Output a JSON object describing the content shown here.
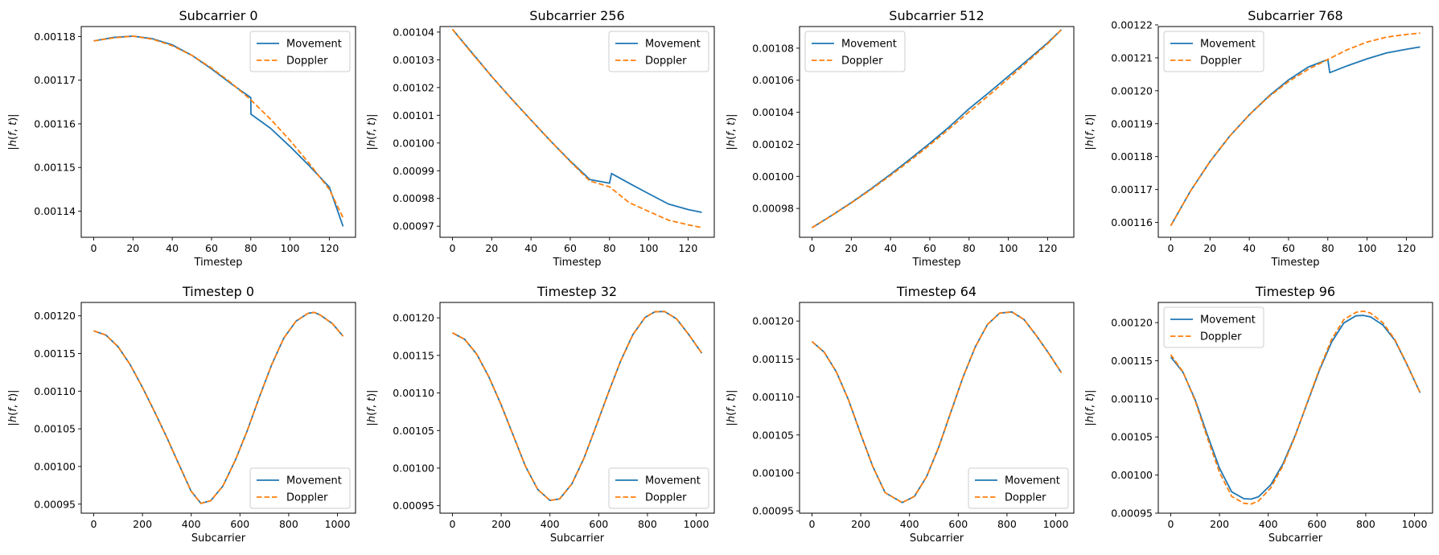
{
  "colors": {
    "movement": "#1f77b4",
    "doppler": "#ff7f0e"
  },
  "chart_data": [
    {
      "type": "line",
      "title": "Subcarrier 0",
      "xlabel": "Timestep",
      "ylabel": "|h(f, t)|",
      "xlim": [
        -6.35,
        133.35
      ],
      "ylim": [
        0.001134,
        0.0011823
      ],
      "xticks": [
        0,
        20,
        40,
        60,
        80,
        100,
        120
      ],
      "yticks": [
        0.00114,
        0.00115,
        0.00116,
        0.00117,
        0.00118
      ],
      "ytick_labels": [
        "0.00114",
        "0.00115",
        "0.00116",
        "0.00117",
        "0.00118"
      ],
      "legend": "upper right",
      "series": [
        {
          "name": "Movement",
          "style": "solid",
          "x": [
            0,
            10,
            20,
            30,
            40,
            50,
            60,
            70,
            80,
            80.1,
            90,
            100,
            110,
            120,
            127
          ],
          "y": [
            0.001179,
            0.0011798,
            0.0011801,
            0.0011795,
            0.0011781,
            0.0011757,
            0.0011726,
            0.0011692,
            0.001166,
            0.0011622,
            0.001159,
            0.0011548,
            0.0011503,
            0.0011455,
            0.0011365
          ]
        },
        {
          "name": "Doppler",
          "style": "dashed",
          "x": [
            0,
            10,
            20,
            30,
            40,
            50,
            60,
            70,
            80,
            90,
            100,
            110,
            120,
            127
          ],
          "y": [
            0.001179,
            0.0011797,
            0.0011801,
            0.0011794,
            0.0011779,
            0.0011757,
            0.0011728,
            0.0011694,
            0.0011655,
            0.0011611,
            0.0011562,
            0.0011508,
            0.001145,
            0.0011385
          ]
        }
      ]
    },
    {
      "type": "line",
      "title": "Subcarrier 256",
      "xlabel": "Timestep",
      "ylabel": "|h(f, t)|",
      "xlim": [
        -6.35,
        133.35
      ],
      "ylim": [
        0.000966,
        0.001042
      ],
      "xticks": [
        0,
        20,
        40,
        60,
        80,
        100,
        120
      ],
      "yticks": [
        0.00097,
        0.00098,
        0.00099,
        0.001,
        0.00101,
        0.00102,
        0.00103,
        0.00104
      ],
      "ytick_labels": [
        "0.00097",
        "0.00098",
        "0.00099",
        "0.00100",
        "0.00101",
        "0.00102",
        "0.00103",
        "0.00104"
      ],
      "legend": "upper right",
      "series": [
        {
          "name": "Movement",
          "style": "solid",
          "x": [
            0,
            10,
            20,
            30,
            40,
            50,
            60,
            70,
            80,
            81,
            90,
            100,
            110,
            120,
            127
          ],
          "y": [
            0.001041,
            0.0010325,
            0.001024,
            0.001016,
            0.0010083,
            0.0010007,
            0.0009935,
            0.0009868,
            0.0009855,
            0.000989,
            0.0009855,
            0.0009817,
            0.000978,
            0.000976,
            0.000975
          ]
        },
        {
          "name": "Doppler",
          "style": "dashed",
          "x": [
            0,
            10,
            20,
            30,
            40,
            50,
            60,
            70,
            80,
            90,
            100,
            110,
            120,
            127
          ],
          "y": [
            0.001041,
            0.0010323,
            0.001024,
            0.001016,
            0.0010083,
            0.0010007,
            0.0009933,
            0.0009863,
            0.0009842,
            0.0009785,
            0.0009753,
            0.0009722,
            0.0009705,
            0.0009695
          ]
        }
      ]
    },
    {
      "type": "line",
      "title": "Subcarrier 512",
      "xlabel": "Timestep",
      "ylabel": "|h(f, t)|",
      "xlim": [
        -6.35,
        133.35
      ],
      "ylim": [
        0.000962,
        0.0010935
      ],
      "xticks": [
        0,
        20,
        40,
        60,
        80,
        100,
        120
      ],
      "yticks": [
        0.00098,
        0.001,
        0.00102,
        0.00104,
        0.00106,
        0.00108
      ],
      "ytick_labels": [
        "0.00098",
        "0.00100",
        "0.00102",
        "0.00104",
        "0.00106",
        "0.00108"
      ],
      "legend": "upper left",
      "series": [
        {
          "name": "Movement",
          "style": "solid",
          "x": [
            0,
            10,
            20,
            30,
            40,
            50,
            60,
            70,
            80,
            90,
            100,
            110,
            120,
            127
          ],
          "y": [
            0.000968,
            0.0009756,
            0.0009836,
            0.0009922,
            0.0010013,
            0.0010108,
            0.0010207,
            0.001031,
            0.0010422,
            0.0010522,
            0.0010625,
            0.0010728,
            0.0010833,
            0.0010915
          ]
        },
        {
          "name": "Doppler",
          "style": "dashed",
          "x": [
            0,
            10,
            20,
            30,
            40,
            50,
            60,
            70,
            80,
            90,
            100,
            110,
            120,
            127
          ],
          "y": [
            0.000968,
            0.0009755,
            0.0009834,
            0.0009918,
            0.0010006,
            0.0010099,
            0.0010196,
            0.0010298,
            0.0010403,
            0.0010505,
            0.001061,
            0.0010718,
            0.0010828,
            0.0010915
          ]
        }
      ]
    },
    {
      "type": "line",
      "title": "Subcarrier 768",
      "xlabel": "Timestep",
      "ylabel": "|h(f, t)|",
      "xlim": [
        -6.35,
        133.35
      ],
      "ylim": [
        0.0011555,
        0.0012195
      ],
      "xticks": [
        0,
        20,
        40,
        60,
        80,
        100,
        120
      ],
      "yticks": [
        0.00116,
        0.00117,
        0.00118,
        0.00119,
        0.0012,
        0.00121,
        0.00122
      ],
      "ytick_labels": [
        "0.00116",
        "0.00117",
        "0.00118",
        "0.00119",
        "0.00120",
        "0.00121",
        "0.00122"
      ],
      "legend": "upper left",
      "series": [
        {
          "name": "Movement",
          "style": "solid",
          "x": [
            0,
            10,
            20,
            30,
            40,
            50,
            60,
            70,
            80,
            81,
            90,
            100,
            110,
            120,
            127
          ],
          "y": [
            0.001159,
            0.0011695,
            0.0011785,
            0.0011862,
            0.0011927,
            0.0011984,
            0.0012033,
            0.0012072,
            0.0012095,
            0.0012055,
            0.0012076,
            0.0012097,
            0.0012115,
            0.0012126,
            0.0012133
          ]
        },
        {
          "name": "Doppler",
          "style": "dashed",
          "x": [
            0,
            10,
            20,
            30,
            40,
            50,
            60,
            70,
            80,
            90,
            100,
            110,
            120,
            127
          ],
          "y": [
            0.001159,
            0.0011695,
            0.0011785,
            0.0011862,
            0.0011927,
            0.0011982,
            0.0012028,
            0.0012065,
            0.0012095,
            0.0012125,
            0.0012148,
            0.0012163,
            0.0012171,
            0.0012175
          ]
        }
      ]
    },
    {
      "type": "line",
      "title": "Timestep 0",
      "xlabel": "Subcarrier",
      "ylabel": "|h(f, t)|",
      "xlim": [
        -51.15,
        1074.15
      ],
      "ylim": [
        0.000938,
        0.0012178
      ],
      "xticks": [
        0,
        200,
        400,
        600,
        800,
        1000
      ],
      "yticks": [
        0.00095,
        0.001,
        0.00105,
        0.0011,
        0.00115,
        0.0012
      ],
      "ytick_labels": [
        "0.00095",
        "0.00100",
        "0.00105",
        "0.00110",
        "0.00115",
        "0.00120"
      ],
      "legend": "lower right",
      "series": [
        {
          "name": "Movement",
          "style": "solid",
          "x": [
            0,
            50,
            100,
            150,
            200,
            250,
            300,
            350,
            400,
            440,
            480,
            530,
            580,
            630,
            680,
            730,
            780,
            830,
            880,
            905,
            930,
            980,
            1023
          ],
          "y": [
            0.00118,
            0.0011745,
            0.001159,
            0.001135,
            0.001105,
            0.0010725,
            0.0010385,
            0.0010025,
            0.000967,
            0.000951,
            0.0009545,
            0.000974,
            0.0010075,
            0.0010475,
            0.0010925,
            0.001135,
            0.0011705,
            0.001193,
            0.0012035,
            0.0012045,
            0.001201,
            0.0011895,
            0.001173
          ]
        },
        {
          "name": "Doppler",
          "style": "dashed",
          "x": [
            0,
            50,
            100,
            150,
            200,
            250,
            300,
            350,
            400,
            440,
            480,
            530,
            580,
            630,
            680,
            730,
            780,
            830,
            880,
            905,
            930,
            980,
            1023
          ],
          "y": [
            0.00118,
            0.0011745,
            0.001159,
            0.001135,
            0.001105,
            0.0010725,
            0.0010385,
            0.0010025,
            0.000967,
            0.000951,
            0.0009545,
            0.000974,
            0.0010075,
            0.0010475,
            0.0010925,
            0.001135,
            0.0011705,
            0.001193,
            0.0012035,
            0.0012045,
            0.001201,
            0.0011895,
            0.001173
          ]
        }
      ]
    },
    {
      "type": "line",
      "title": "Timestep 32",
      "xlabel": "Subcarrier",
      "ylabel": "|h(f, t)|",
      "xlim": [
        -51.15,
        1074.15
      ],
      "ylim": [
        0.00094,
        0.0012205
      ],
      "xticks": [
        0,
        200,
        400,
        600,
        800,
        1000
      ],
      "yticks": [
        0.00095,
        0.001,
        0.00105,
        0.0011,
        0.00115,
        0.0012
      ],
      "ytick_labels": [
        "0.00095",
        "0.00100",
        "0.00105",
        "0.00110",
        "0.00115",
        "0.00120"
      ],
      "legend": "lower right",
      "series": [
        {
          "name": "Movement",
          "style": "solid",
          "x": [
            0,
            50,
            100,
            150,
            200,
            250,
            300,
            350,
            400,
            440,
            490,
            540,
            590,
            640,
            690,
            740,
            790,
            830,
            870,
            920,
            970,
            1023
          ],
          "y": [
            0.00118,
            0.0011715,
            0.0011515,
            0.001121,
            0.001084,
            0.001043,
            0.001002,
            0.0009715,
            0.000957,
            0.000959,
            0.000979,
            0.0010135,
            0.0010565,
            0.0011005,
            0.0011425,
            0.0011775,
            0.0012005,
            0.001208,
            0.0012085,
            0.0011985,
            0.0011775,
            0.001153
          ]
        },
        {
          "name": "Doppler",
          "style": "dashed",
          "x": [
            0,
            50,
            100,
            150,
            200,
            250,
            300,
            350,
            400,
            440,
            490,
            540,
            590,
            640,
            690,
            740,
            790,
            830,
            870,
            920,
            970,
            1023
          ],
          "y": [
            0.00118,
            0.0011715,
            0.0011515,
            0.001121,
            0.001084,
            0.001043,
            0.001002,
            0.0009715,
            0.000957,
            0.000959,
            0.000979,
            0.0010135,
            0.0010565,
            0.0011005,
            0.0011425,
            0.0011775,
            0.0012005,
            0.001208,
            0.0012085,
            0.0011985,
            0.0011775,
            0.001153
          ]
        }
      ]
    },
    {
      "type": "line",
      "title": "Timestep 64",
      "xlabel": "Subcarrier",
      "ylabel": "|h(f, t)|",
      "xlim": [
        -51.15,
        1074.15
      ],
      "ylim": [
        0.000947,
        0.0012245
      ],
      "xticks": [
        0,
        200,
        400,
        600,
        800,
        1000
      ],
      "yticks": [
        0.00095,
        0.001,
        0.00105,
        0.0011,
        0.00115,
        0.0012
      ],
      "ytick_labels": [
        "0.00095",
        "0.00100",
        "0.00105",
        "0.00110",
        "0.00115",
        "0.00120"
      ],
      "legend": "lower right",
      "series": [
        {
          "name": "Movement",
          "style": "solid",
          "x": [
            0,
            50,
            100,
            150,
            200,
            250,
            300,
            370,
            420,
            470,
            520,
            570,
            620,
            670,
            720,
            770,
            820,
            870,
            920,
            970,
            1023
          ],
          "y": [
            0.001173,
            0.001159,
            0.001133,
            0.001096,
            0.001051,
            0.001008,
            0.000974,
            0.000961,
            0.000969,
            0.000995,
            0.001034,
            0.0010805,
            0.0011265,
            0.001166,
            0.0011955,
            0.0012105,
            0.001212,
            0.001202,
            0.001181,
            0.001158,
            0.001132
          ]
        },
        {
          "name": "Doppler",
          "style": "dashed",
          "x": [
            0,
            50,
            100,
            150,
            200,
            250,
            300,
            370,
            420,
            470,
            520,
            570,
            620,
            670,
            720,
            770,
            820,
            870,
            920,
            970,
            1023
          ],
          "y": [
            0.001173,
            0.001159,
            0.001133,
            0.001096,
            0.001051,
            0.001008,
            0.000974,
            0.000961,
            0.000969,
            0.000995,
            0.001034,
            0.0010805,
            0.0011265,
            0.001166,
            0.0011955,
            0.0012105,
            0.001212,
            0.001202,
            0.001181,
            0.001158,
            0.001132
          ]
        }
      ]
    },
    {
      "type": "line",
      "title": "Timestep 96",
      "xlabel": "Subcarrier",
      "ylabel": "|h(f, t)|",
      "xlim": [
        -51.15,
        1074.15
      ],
      "ylim": [
        0.00095,
        0.0012265
      ],
      "xticks": [
        0,
        200,
        400,
        600,
        800,
        1000
      ],
      "yticks": [
        0.00095,
        0.001,
        0.00105,
        0.0011,
        0.00115,
        0.0012
      ],
      "ytick_labels": [
        "0.00095",
        "0.00100",
        "0.00105",
        "0.00110",
        "0.00115",
        "0.00120"
      ],
      "legend": "upper left",
      "series": [
        {
          "name": "Movement",
          "style": "solid",
          "x": [
            0,
            50,
            100,
            150,
            200,
            250,
            300,
            330,
            360,
            410,
            460,
            510,
            560,
            610,
            660,
            710,
            760,
            790,
            820,
            870,
            920,
            970,
            1023
          ],
          "y": [
            0.001155,
            0.001135,
            0.001099,
            0.001053,
            0.001009,
            0.000978,
            0.000969,
            0.0009685,
            0.0009715,
            0.000987,
            0.0010145,
            0.0010515,
            0.0010945,
            0.0011375,
            0.0011745,
            0.0011995,
            0.001209,
            0.0012095,
            0.0012075,
            0.001197,
            0.0011765,
            0.0011445,
            0.001108
          ]
        },
        {
          "name": "Doppler",
          "style": "dashed",
          "x": [
            0,
            50,
            100,
            150,
            200,
            250,
            300,
            330,
            360,
            410,
            460,
            510,
            560,
            610,
            660,
            710,
            760,
            790,
            820,
            870,
            920,
            970,
            1023
          ],
          "y": [
            0.001158,
            0.0011355,
            0.0010975,
            0.001049,
            0.0010035,
            0.000972,
            0.000963,
            0.000962,
            0.000966,
            0.000983,
            0.001012,
            0.0010505,
            0.0010955,
            0.001139,
            0.001178,
            0.001204,
            0.0012135,
            0.001215,
            0.0012125,
            0.0012,
            0.0011775,
            0.001145,
            0.001108
          ]
        }
      ]
    }
  ]
}
